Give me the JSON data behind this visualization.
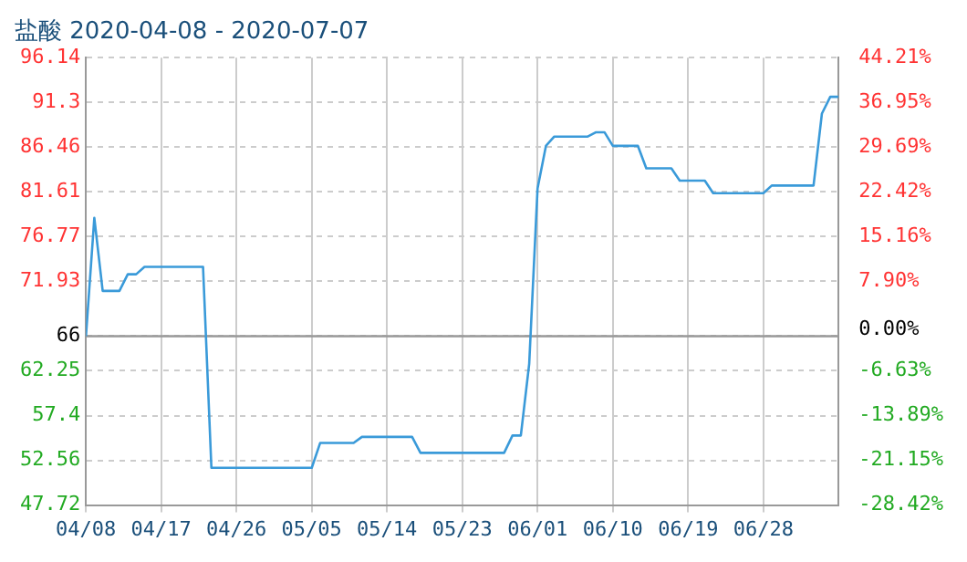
{
  "chart_data": {
    "type": "line",
    "title": "盐酸 2020-04-08 - 2020-07-07",
    "x": [
      "2020-04-08",
      "2020-04-09",
      "2020-04-10",
      "2020-04-12",
      "2020-04-13",
      "2020-04-14",
      "2020-04-15",
      "2020-04-22",
      "2020-04-23",
      "2020-05-05",
      "2020-05-06",
      "2020-05-10",
      "2020-05-11",
      "2020-05-17",
      "2020-05-18",
      "2020-05-28",
      "2020-05-29",
      "2020-05-30",
      "2020-05-31",
      "2020-06-01",
      "2020-06-02",
      "2020-06-03",
      "2020-06-07",
      "2020-06-08",
      "2020-06-09",
      "2020-06-10",
      "2020-06-13",
      "2020-06-14",
      "2020-06-17",
      "2020-06-18",
      "2020-06-21",
      "2020-06-22",
      "2020-06-28",
      "2020-06-29",
      "2020-07-04",
      "2020-07-05",
      "2020-07-06",
      "2020-07-07"
    ],
    "series": [
      {
        "color": "#3a9ad9",
        "values": [
          66,
          78.8,
          70.9,
          70.9,
          72.7,
          72.7,
          73.5,
          73.5,
          51.75,
          51.75,
          54.44,
          54.44,
          55.1,
          55.1,
          53.37,
          53.37,
          55.25,
          55.25,
          63,
          82,
          86.59,
          87.6,
          87.6,
          88.07,
          88.07,
          86.59,
          86.59,
          84.17,
          84.17,
          82.83,
          82.83,
          81.48,
          81.48,
          82.3,
          82.3,
          90.09,
          91.9,
          91.9
        ]
      }
    ],
    "xlim": [
      "2020-04-08",
      "2020-07-07"
    ],
    "xticks": [
      {
        "value": "2020-04-08",
        "label": "04/08"
      },
      {
        "value": "2020-04-17",
        "label": "04/17"
      },
      {
        "value": "2020-04-26",
        "label": "04/26"
      },
      {
        "value": "2020-05-05",
        "label": "05/05"
      },
      {
        "value": "2020-05-14",
        "label": "05/14"
      },
      {
        "value": "2020-05-23",
        "label": "05/23"
      },
      {
        "value": "2020-06-01",
        "label": "06/01"
      },
      {
        "value": "2020-06-10",
        "label": "06/10"
      },
      {
        "value": "2020-06-19",
        "label": "06/19"
      },
      {
        "value": "2020-06-28",
        "label": "06/28"
      }
    ],
    "ylim": [
      47.72,
      96.14
    ],
    "yticks": [
      47.72,
      52.56,
      57.4,
      62.25,
      66,
      71.93,
      76.77,
      81.61,
      86.46,
      91.3,
      96.14
    ],
    "y2lim": [
      -28.42,
      44.21
    ],
    "y2ticks": [
      {
        "value": -28.42,
        "label": "-28.42%"
      },
      {
        "value": -21.15,
        "label": "-21.15%"
      },
      {
        "value": -13.89,
        "label": "-13.89%"
      },
      {
        "value": -6.63,
        "label": "-6.63%"
      },
      {
        "value": 0,
        "label": "0.00%"
      },
      {
        "value": 7.9,
        "label": "7.90%"
      },
      {
        "value": 15.16,
        "label": "15.16%"
      },
      {
        "value": 22.42,
        "label": "22.42%"
      },
      {
        "value": 29.69,
        "label": "29.69%"
      },
      {
        "value": 36.95,
        "label": "36.95%"
      },
      {
        "value": 44.21,
        "label": "44.21%"
      }
    ],
    "ref_lines": [
      {
        "axis": "y",
        "value": 66,
        "color": "#999999"
      }
    ],
    "grid": true,
    "legend": false,
    "marker": "none",
    "line_style": "solid"
  }
}
